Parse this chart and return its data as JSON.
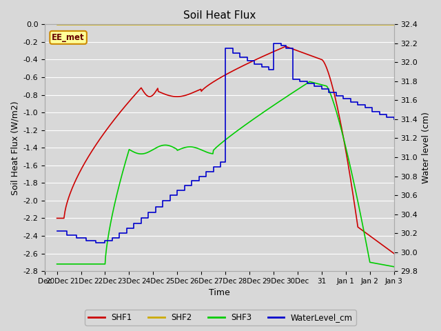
{
  "title": "Soil Heat Flux",
  "xlabel": "Time",
  "ylabel_left": "Soil Heat Flux (W/m2)",
  "ylabel_right": "Water level (cm)",
  "ylim_left": [
    -2.8,
    0.0
  ],
  "ylim_right": [
    29.8,
    32.4
  ],
  "plot_bg_color": "#d8d8d8",
  "fig_bg_color": "#d8d8d8",
  "grid_color": "#ffffff",
  "annotation_text": "EE_met",
  "annotation_box_color": "#ffff99",
  "annotation_box_edge": "#cc8800",
  "colors": {
    "SHF1": "#cc0000",
    "SHF2": "#ccaa00",
    "SHF3": "#00cc00",
    "WaterLevel": "#0000cc"
  },
  "xtick_labels": [
    "Dec",
    "20Dec",
    "21Dec",
    "22Dec",
    "23Dec",
    "24Dec",
    "25Dec",
    "26Dec",
    "27Dec",
    "28Dec",
    "29Dec",
    "30Dec",
    "31",
    "Jan 1",
    "Jan 2",
    "Jan 3"
  ],
  "xtick_positions": [
    -0.5,
    0,
    1,
    2,
    3,
    4,
    5,
    6,
    7,
    8,
    9,
    10,
    11,
    12,
    13,
    14
  ],
  "yticks_left": [
    0.0,
    -0.2,
    -0.4,
    -0.6,
    -0.8,
    -1.0,
    -1.2,
    -1.4,
    -1.6,
    -1.8,
    -2.0,
    -2.2,
    -2.4,
    -2.6,
    -2.8
  ],
  "yticks_right": [
    32.4,
    32.2,
    32.0,
    31.8,
    31.6,
    31.4,
    31.2,
    31.0,
    30.8,
    30.6,
    30.4,
    30.2,
    30.0,
    29.8
  ]
}
